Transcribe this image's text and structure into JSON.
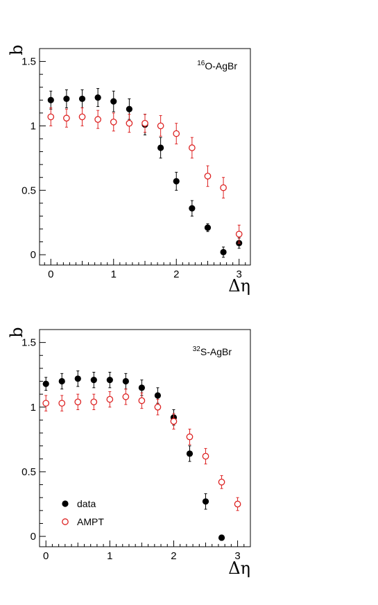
{
  "colors": {
    "data": "#000000",
    "ampt": "#dd2222",
    "frame": "#000000"
  },
  "legend": {
    "items": [
      {
        "label": "data",
        "marker": "filled-circle",
        "color": "#000000"
      },
      {
        "label": "AMPT",
        "marker": "open-circle",
        "color": "#dd2222"
      }
    ],
    "panel": 1,
    "placement": "bottom-left"
  },
  "chart_data": [
    {
      "type": "scatter",
      "label_sup": "16",
      "label_main": "O-AgBr",
      "xlabel": "Δη",
      "ylabel": "b",
      "xlim": [
        -0.18,
        3.18
      ],
      "ylim": [
        -0.08,
        1.6
      ],
      "xticks": [
        "0",
        "1",
        "2",
        "3"
      ],
      "yticks": [
        "0",
        "0.5",
        "1",
        "1.5"
      ],
      "series": [
        {
          "name": "data",
          "marker": "filled",
          "x": [
            0,
            0.25,
            0.5,
            0.75,
            1.0,
            1.25,
            1.5,
            1.75,
            2.0,
            2.25,
            2.5,
            2.75,
            3.0
          ],
          "y": [
            1.2,
            1.21,
            1.21,
            1.22,
            1.19,
            1.13,
            1.01,
            0.83,
            0.57,
            0.36,
            0.21,
            0.02,
            0.09
          ],
          "err": [
            0.07,
            0.07,
            0.07,
            0.07,
            0.08,
            0.08,
            0.08,
            0.08,
            0.07,
            0.06,
            0.03,
            0.04,
            0.04
          ]
        },
        {
          "name": "AMPT",
          "marker": "open",
          "x": [
            0,
            0.25,
            0.5,
            0.75,
            1.0,
            1.25,
            1.5,
            1.75,
            2.0,
            2.25,
            2.5,
            2.75,
            3.0
          ],
          "y": [
            1.07,
            1.06,
            1.07,
            1.05,
            1.03,
            1.02,
            1.02,
            1.0,
            0.94,
            0.83,
            0.61,
            0.52,
            0.16
          ],
          "err": [
            0.07,
            0.07,
            0.07,
            0.07,
            0.07,
            0.07,
            0.07,
            0.08,
            0.08,
            0.08,
            0.08,
            0.08,
            0.07
          ]
        }
      ]
    },
    {
      "type": "scatter",
      "label_sup": "32",
      "label_main": "S-AgBr",
      "xlabel": "Δη",
      "ylabel": "b",
      "xlim": [
        -0.1,
        3.2
      ],
      "ylim": [
        -0.08,
        1.6
      ],
      "xticks": [
        "0",
        "1",
        "2",
        "3"
      ],
      "yticks": [
        "0",
        "0.5",
        "1",
        "1.5"
      ],
      "series": [
        {
          "name": "data",
          "marker": "filled",
          "x": [
            0,
            0.25,
            0.5,
            0.75,
            1.0,
            1.25,
            1.5,
            1.75,
            2.0,
            2.25,
            2.5,
            2.75
          ],
          "y": [
            1.18,
            1.2,
            1.22,
            1.21,
            1.21,
            1.2,
            1.15,
            1.09,
            0.92,
            0.64,
            0.27,
            -0.01
          ],
          "err": [
            0.05,
            0.06,
            0.06,
            0.06,
            0.06,
            0.06,
            0.06,
            0.06,
            0.06,
            0.06,
            0.06,
            0.02
          ]
        },
        {
          "name": "AMPT",
          "marker": "open",
          "x": [
            0,
            0.25,
            0.5,
            0.75,
            1.0,
            1.25,
            1.5,
            1.75,
            2.0,
            2.25,
            2.5,
            2.75,
            3.0
          ],
          "y": [
            1.03,
            1.03,
            1.04,
            1.04,
            1.06,
            1.08,
            1.05,
            1.0,
            0.89,
            0.77,
            0.62,
            0.42,
            0.25
          ],
          "err": [
            0.06,
            0.06,
            0.06,
            0.06,
            0.06,
            0.06,
            0.06,
            0.06,
            0.06,
            0.06,
            0.06,
            0.05,
            0.05
          ]
        }
      ]
    }
  ]
}
